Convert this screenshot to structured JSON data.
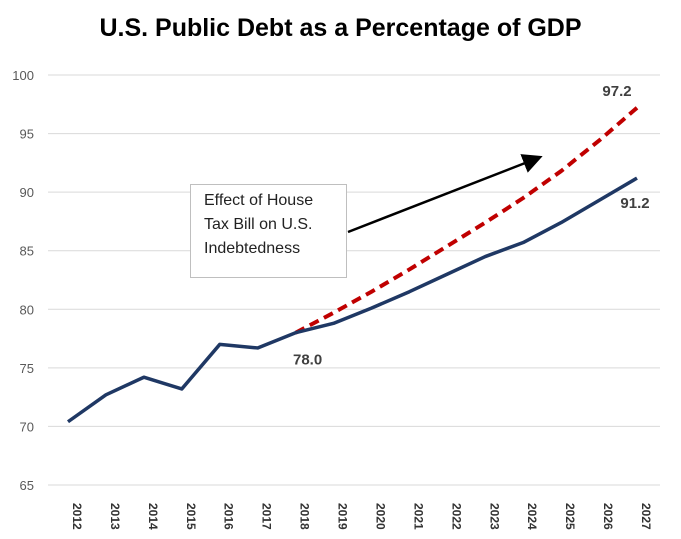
{
  "chart_data": {
    "type": "line",
    "title": "U.S. Public Debt as a Percentage of GDP",
    "xlabel": "",
    "ylabel": "",
    "x": [
      2012,
      2013,
      2014,
      2015,
      2016,
      2017,
      2018,
      2019,
      2020,
      2021,
      2022,
      2023,
      2024,
      2025,
      2026,
      2027
    ],
    "ylim": [
      65,
      100
    ],
    "yticks": [
      65,
      70,
      75,
      80,
      85,
      90,
      95,
      100
    ],
    "grid": true,
    "series": [
      {
        "style": "solid",
        "color": "#1f3864",
        "x": [
          2012,
          2013,
          2014,
          2015,
          2016,
          2017,
          2018,
          2019,
          2020,
          2021,
          2022,
          2023,
          2024,
          2025,
          2026,
          2027
        ],
        "values": [
          70.4,
          72.7,
          74.2,
          73.2,
          77.0,
          76.7,
          78.0,
          78.8,
          80.1,
          81.5,
          83.0,
          84.5,
          85.7,
          87.4,
          89.3,
          91.2
        ]
      },
      {
        "style": "dashed",
        "color": "#c00000",
        "x": [
          2018,
          2019,
          2020,
          2021,
          2022,
          2023,
          2024,
          2025,
          2026,
          2027
        ],
        "values": [
          78.0,
          79.7,
          81.5,
          83.4,
          85.4,
          87.4,
          89.5,
          91.8,
          94.4,
          97.2
        ]
      }
    ],
    "data_labels": [
      {
        "x": 2018,
        "y": 78.0,
        "text": "78.0"
      },
      {
        "x": 2027,
        "y": 97.2,
        "text": "97.2"
      },
      {
        "x": 2027,
        "y": 91.2,
        "text": "91.2"
      }
    ],
    "annotation": {
      "lines": [
        "Effect of House",
        "Tax Bill on U.S.",
        "Indebtedness"
      ]
    }
  }
}
